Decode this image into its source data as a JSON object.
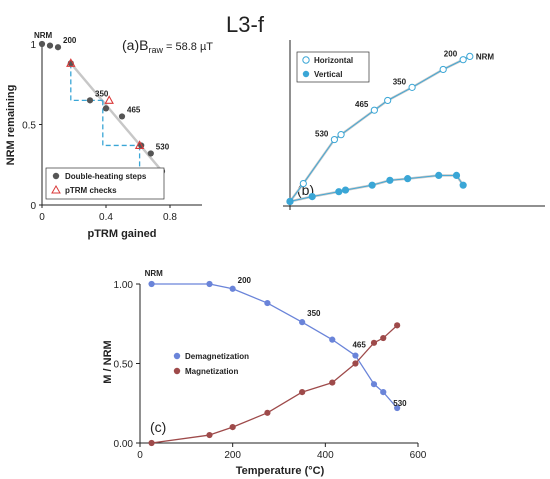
{
  "figure_title": "L3-f",
  "chart_data": [
    {
      "panel": "(a)",
      "type": "scatter",
      "annotation_prefix": "(a)B",
      "annotation_sub": "raw",
      "annotation_value": " = 58.8 µT",
      "xlabel": "pTRM gained",
      "ylabel": "NRM remaining",
      "xlim": [
        0,
        1
      ],
      "ylim": [
        0,
        1
      ],
      "xticks": [
        "0",
        "0.4",
        "0.8"
      ],
      "xtick_values": [
        0,
        0.4,
        0.8
      ],
      "yticks": [
        "0",
        "0.5",
        "1"
      ],
      "ytick_values": [
        0,
        0.5,
        1
      ],
      "series": [
        {
          "name": "Double-heating steps",
          "color": "#555555",
          "x": [
            0,
            0.05,
            0.1,
            0.18,
            0.3,
            0.4,
            0.5,
            0.62,
            0.68,
            0.75
          ],
          "y": [
            1,
            0.99,
            0.98,
            0.88,
            0.65,
            0.6,
            0.55,
            0.37,
            0.32,
            0.21
          ]
        },
        {
          "name": "pTRM checks",
          "color": "#d93a3a",
          "x": [
            0.18,
            0.42,
            0.61
          ],
          "y": [
            0.88,
            0.65,
            0.37
          ]
        }
      ],
      "fit_line": {
        "x": [
          0.18,
          0.75
        ],
        "y": [
          0.88,
          0.21
        ]
      },
      "check_lines": [
        {
          "x": [
            0.18,
            0.18,
            0.38
          ],
          "y": [
            0.88,
            0.65,
            0.65
          ]
        },
        {
          "x": [
            0.38,
            0.38,
            0.61
          ],
          "y": [
            0.65,
            0.37,
            0.37
          ]
        },
        {
          "x": [
            0.61,
            0.61,
            0.73
          ],
          "y": [
            0.37,
            0.21,
            0.21
          ]
        }
      ],
      "step_labels": [
        {
          "text": "NRM",
          "x": 0,
          "y": 1
        },
        {
          "text": "200",
          "x": 0.1,
          "y": 0.98
        },
        {
          "text": "350",
          "x": 0.3,
          "y": 0.65
        },
        {
          "text": "465",
          "x": 0.5,
          "y": 0.55
        },
        {
          "text": "530",
          "x": 0.68,
          "y": 0.32
        }
      ]
    },
    {
      "panel": "(b)",
      "type": "scatter",
      "legend_position": "top-left",
      "series": [
        {
          "name": "Horizontal",
          "color": "#3aa6d6",
          "filled": false,
          "x": [
            0,
            0.06,
            0.2,
            0.23,
            0.38,
            0.44,
            0.55,
            0.69,
            0.78,
            0.81
          ],
          "y": [
            0.04,
            0.15,
            0.42,
            0.45,
            0.6,
            0.66,
            0.74,
            0.85,
            0.91,
            0.93
          ]
        },
        {
          "name": "Vertical",
          "color": "#3aa6d6",
          "filled": true,
          "x": [
            0,
            0.1,
            0.22,
            0.25,
            0.37,
            0.45,
            0.53,
            0.67,
            0.75,
            0.78
          ],
          "y": [
            0.04,
            0.07,
            0.1,
            0.11,
            0.14,
            0.17,
            0.18,
            0.2,
            0.2,
            0.14
          ]
        }
      ],
      "step_labels": [
        {
          "text": "NRM",
          "series": 0,
          "index": 9
        },
        {
          "text": "200",
          "series": 0,
          "index": 8
        },
        {
          "text": "350",
          "series": 0,
          "index": 6
        },
        {
          "text": "465",
          "series": 0,
          "index": 4
        },
        {
          "text": "530",
          "series": 0,
          "index": 2
        }
      ]
    },
    {
      "panel": "(c)",
      "type": "line",
      "xlabel": "Temperature (°C)",
      "ylabel": "M / NRM",
      "xlim": [
        0,
        600
      ],
      "ylim": [
        0,
        1
      ],
      "xticks": [
        "0",
        "200",
        "400",
        "600"
      ],
      "xtick_values": [
        0,
        200,
        400,
        600
      ],
      "yticks": [
        "0.00",
        "0.50",
        "1.00"
      ],
      "ytick_values": [
        0,
        0.5,
        1
      ],
      "legend_position": "center-left",
      "series": [
        {
          "name": "Demagnetization",
          "color": "#6a84d9",
          "x": [
            25,
            150,
            200,
            275,
            350,
            415,
            465,
            505,
            525,
            555
          ],
          "y": [
            1.0,
            1.0,
            0.97,
            0.88,
            0.76,
            0.65,
            0.55,
            0.37,
            0.32,
            0.22
          ]
        },
        {
          "name": "Magnetization",
          "color": "#9e4a4a",
          "x": [
            25,
            150,
            200,
            275,
            350,
            415,
            465,
            505,
            525,
            555
          ],
          "y": [
            0.0,
            0.05,
            0.1,
            0.19,
            0.32,
            0.38,
            0.5,
            0.63,
            0.66,
            0.74
          ]
        }
      ],
      "step_labels": [
        {
          "text": "NRM",
          "series": 0,
          "index": 0
        },
        {
          "text": "200",
          "series": 0,
          "index": 2
        },
        {
          "text": "350",
          "series": 0,
          "index": 4
        },
        {
          "text": "465",
          "series": 0,
          "index": 6
        },
        {
          "text": "530",
          "series": 0,
          "index": 8
        }
      ]
    }
  ]
}
